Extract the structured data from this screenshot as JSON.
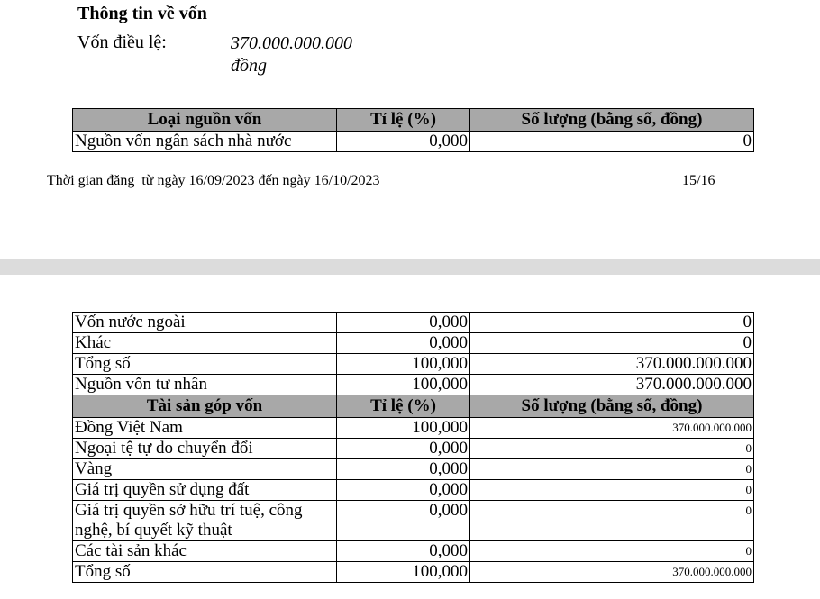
{
  "header": {
    "title": "Thông tin về vốn",
    "charter_label": "Vốn điều lệ:",
    "charter_value": "370.000.000.000 đồng"
  },
  "table_1": {
    "headers": [
      "Loại nguồn vốn",
      "Tỉ lệ (%)",
      "Số lượng (bằng số, đồng)"
    ],
    "rows": [
      [
        "Nguồn vốn ngân sách nhà nước",
        "0,000",
        "0"
      ]
    ]
  },
  "footer": {
    "period": "Thời gian đăng  từ ngày 16/09/2023 đến ngày 16/10/2023",
    "page": "15/16"
  },
  "table_2": {
    "rows": [
      [
        "Vốn nước ngoài",
        "0,000",
        "0"
      ],
      [
        "Khác",
        "0,000",
        "0"
      ],
      [
        "Tổng số",
        "100,000",
        "370.000.000.000"
      ],
      [
        "Nguồn vốn tư nhân",
        "100,000",
        "370.000.000.000"
      ]
    ]
  },
  "table_3": {
    "headers": [
      "Tài sản góp vốn",
      "Tỉ lệ (%)",
      "Số lượng (bằng số, đồng)"
    ],
    "rows": [
      [
        "Đồng Việt Nam",
        "100,000",
        "370.000.000.000"
      ],
      [
        "Ngoại tệ tự do chuyển đổi",
        "0,000",
        "0"
      ],
      [
        "Vàng",
        "0,000",
        "0"
      ],
      [
        "Giá trị quyền sử dụng đất",
        "0,000",
        "0"
      ],
      [
        "Giá trị quyền sở hữu trí tuệ, công nghệ, bí quyết kỹ thuật",
        "0,000",
        "0"
      ],
      [
        "Các tài sản khác",
        "0,000",
        "0"
      ],
      [
        "Tổng số",
        "100,000",
        "370.000.000.000"
      ]
    ]
  }
}
